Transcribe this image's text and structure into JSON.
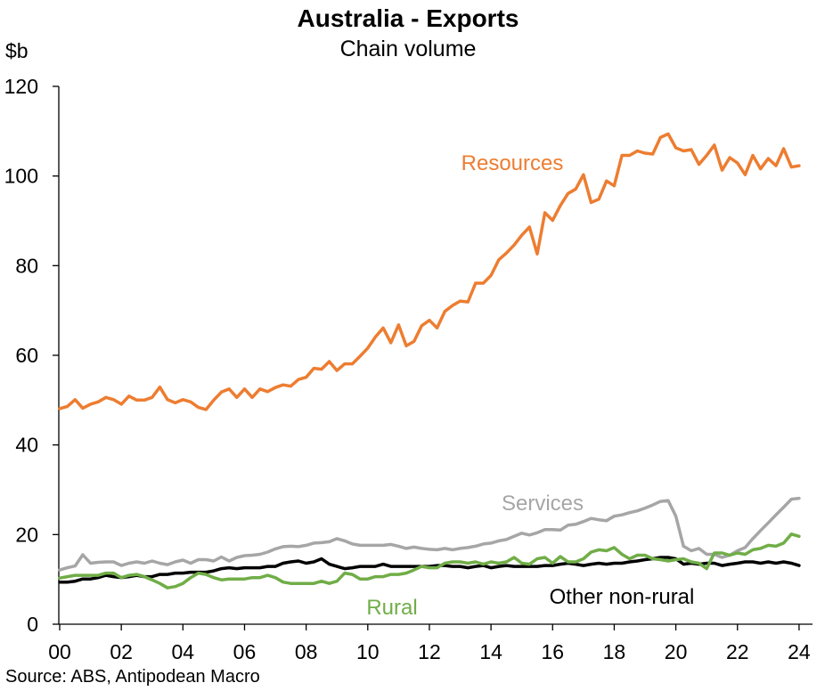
{
  "chart_data": {
    "type": "line",
    "title": "Australia - Exports",
    "subtitle": "Chain volume",
    "y_unit": "$b",
    "source": "Source: ABS, Antipodean Macro",
    "ylim": [
      0,
      120
    ],
    "y_ticks": [
      0,
      20,
      40,
      60,
      80,
      100,
      120
    ],
    "xlim": [
      2000,
      2024.5
    ],
    "x_ticks": [
      2000,
      2002,
      2004,
      2006,
      2008,
      2010,
      2012,
      2014,
      2016,
      2018,
      2020,
      2022,
      2024
    ],
    "x_tick_labels": [
      "00",
      "02",
      "04",
      "06",
      "08",
      "10",
      "12",
      "14",
      "16",
      "18",
      "20",
      "22",
      "24"
    ],
    "grid": false,
    "legend": "none (series labelled directly on chart)",
    "series": [
      {
        "name": "Resources",
        "color": "#ED7D31",
        "x": [
          2000.0,
          2000.25,
          2000.5,
          2000.75,
          2001.0,
          2001.25,
          2001.5,
          2001.75,
          2002.0,
          2002.25,
          2002.5,
          2002.75,
          2003.0,
          2003.25,
          2003.5,
          2003.75,
          2004.0,
          2004.25,
          2004.5,
          2004.75,
          2005.0,
          2005.25,
          2005.5,
          2005.75,
          2006.0,
          2006.25,
          2006.5,
          2006.75,
          2007.0,
          2007.25,
          2007.5,
          2007.75,
          2008.0,
          2008.25,
          2008.5,
          2008.75,
          2009.0,
          2009.25,
          2009.5,
          2009.75,
          2010.0,
          2010.25,
          2010.5,
          2010.75,
          2011.0,
          2011.25,
          2011.5,
          2011.75,
          2012.0,
          2012.25,
          2012.5,
          2012.75,
          2013.0,
          2013.25,
          2013.5,
          2013.75,
          2014.0,
          2014.25,
          2014.5,
          2014.75,
          2015.0,
          2015.25,
          2015.5,
          2015.75,
          2016.0,
          2016.25,
          2016.5,
          2016.75,
          2017.0,
          2017.25,
          2017.5,
          2017.75,
          2018.0,
          2018.25,
          2018.5,
          2018.75,
          2019.0,
          2019.25,
          2019.5,
          2019.75,
          2020.0,
          2020.25,
          2020.5,
          2020.75,
          2021.0,
          2021.25,
          2021.5,
          2021.75,
          2022.0,
          2022.25,
          2022.5,
          2022.75,
          2023.0,
          2023.25,
          2023.5,
          2023.75,
          2024.0
        ],
        "values": [
          48.1,
          48.6,
          50.1,
          48.2,
          49.1,
          49.6,
          50.6,
          50.1,
          49.1,
          50.9,
          50.0,
          50.0,
          50.6,
          52.9,
          50.1,
          49.4,
          50.1,
          49.6,
          48.4,
          47.9,
          50.0,
          51.8,
          52.5,
          50.6,
          52.5,
          50.6,
          52.5,
          51.9,
          52.8,
          53.4,
          53.1,
          54.6,
          55.1,
          57.1,
          56.9,
          58.6,
          56.6,
          58.1,
          58.1,
          59.8,
          61.6,
          64.1,
          66.1,
          62.8,
          66.8,
          62.1,
          63.1,
          66.6,
          67.8,
          66.1,
          69.8,
          71.1,
          72.1,
          71.9,
          76.1,
          76.1,
          77.8,
          81.3,
          82.8,
          84.6,
          86.8,
          88.6,
          82.6,
          91.8,
          90.1,
          93.4,
          96.1,
          97.1,
          100.3,
          94.1,
          94.8,
          98.9,
          97.8,
          104.6,
          104.6,
          105.6,
          105.1,
          104.9,
          108.6,
          109.4,
          106.3,
          105.6,
          105.9,
          102.6,
          104.6,
          106.9,
          101.3,
          104.1,
          102.9,
          100.3,
          104.6,
          101.6,
          103.9,
          102.3,
          106.1,
          102.0,
          102.3
        ]
      },
      {
        "name": "Services",
        "color": "#A6A6A6",
        "x": [
          2000.0,
          2000.25,
          2000.5,
          2000.75,
          2001.0,
          2001.25,
          2001.5,
          2001.75,
          2002.0,
          2002.25,
          2002.5,
          2002.75,
          2003.0,
          2003.25,
          2003.5,
          2003.75,
          2004.0,
          2004.25,
          2004.5,
          2004.75,
          2005.0,
          2005.25,
          2005.5,
          2005.75,
          2006.0,
          2006.25,
          2006.5,
          2006.75,
          2007.0,
          2007.25,
          2007.5,
          2007.75,
          2008.0,
          2008.25,
          2008.5,
          2008.75,
          2009.0,
          2009.25,
          2009.5,
          2009.75,
          2010.0,
          2010.25,
          2010.5,
          2010.75,
          2011.0,
          2011.25,
          2011.5,
          2011.75,
          2012.0,
          2012.25,
          2012.5,
          2012.75,
          2013.0,
          2013.25,
          2013.5,
          2013.75,
          2014.0,
          2014.25,
          2014.5,
          2014.75,
          2015.0,
          2015.25,
          2015.5,
          2015.75,
          2016.0,
          2016.25,
          2016.5,
          2016.75,
          2017.0,
          2017.25,
          2017.5,
          2017.75,
          2018.0,
          2018.25,
          2018.5,
          2018.75,
          2019.0,
          2019.25,
          2019.5,
          2019.75,
          2020.0,
          2020.25,
          2020.5,
          2020.75,
          2021.0,
          2021.25,
          2021.5,
          2021.75,
          2022.0,
          2022.25,
          2022.5,
          2022.75,
          2023.0,
          2023.25,
          2023.5,
          2023.75,
          2024.0
        ],
        "values": [
          12.1,
          12.6,
          13.0,
          15.5,
          13.6,
          13.8,
          13.9,
          13.9,
          13.1,
          13.6,
          13.9,
          13.6,
          14.1,
          13.6,
          13.3,
          13.9,
          14.3,
          13.6,
          14.4,
          14.4,
          14.1,
          15.0,
          14.1,
          14.9,
          15.3,
          15.4,
          15.6,
          16.1,
          16.8,
          17.3,
          17.4,
          17.3,
          17.6,
          18.1,
          18.2,
          18.4,
          19.1,
          18.6,
          17.9,
          17.6,
          17.6,
          17.6,
          17.6,
          17.8,
          17.4,
          16.9,
          17.2,
          16.9,
          16.7,
          16.6,
          16.9,
          16.6,
          16.9,
          17.1,
          17.4,
          17.9,
          18.1,
          18.6,
          18.9,
          19.6,
          20.3,
          19.9,
          20.4,
          21.1,
          21.1,
          21.0,
          22.1,
          22.3,
          22.9,
          23.6,
          23.3,
          23.1,
          24.1,
          24.4,
          24.9,
          25.3,
          25.9,
          26.6,
          27.4,
          27.6,
          24.1,
          17.4,
          16.4,
          16.9,
          15.6,
          15.6,
          14.9,
          15.4,
          16.4,
          17.1,
          19.1,
          20.9,
          22.6,
          24.4,
          26.1,
          27.9,
          28.1
        ]
      },
      {
        "name": "Rural",
        "color": "#70AD47",
        "x": [
          2000.0,
          2000.25,
          2000.5,
          2000.75,
          2001.0,
          2001.25,
          2001.5,
          2001.75,
          2002.0,
          2002.25,
          2002.5,
          2002.75,
          2003.0,
          2003.25,
          2003.5,
          2003.75,
          2004.0,
          2004.25,
          2004.5,
          2004.75,
          2005.0,
          2005.25,
          2005.5,
          2005.75,
          2006.0,
          2006.25,
          2006.5,
          2006.75,
          2007.0,
          2007.25,
          2007.5,
          2007.75,
          2008.0,
          2008.25,
          2008.5,
          2008.75,
          2009.0,
          2009.25,
          2009.5,
          2009.75,
          2010.0,
          2010.25,
          2010.5,
          2010.75,
          2011.0,
          2011.25,
          2011.5,
          2011.75,
          2012.0,
          2012.25,
          2012.5,
          2012.75,
          2013.0,
          2013.25,
          2013.5,
          2013.75,
          2014.0,
          2014.25,
          2014.5,
          2014.75,
          2015.0,
          2015.25,
          2015.5,
          2015.75,
          2016.0,
          2016.25,
          2016.5,
          2016.75,
          2017.0,
          2017.25,
          2017.5,
          2017.75,
          2018.0,
          2018.25,
          2018.5,
          2018.75,
          2019.0,
          2019.25,
          2019.5,
          2019.75,
          2020.0,
          2020.25,
          2020.5,
          2020.75,
          2021.0,
          2021.25,
          2021.5,
          2021.75,
          2022.0,
          2022.25,
          2022.5,
          2022.75,
          2023.0,
          2023.25,
          2023.5,
          2023.75,
          2024.0
        ],
        "values": [
          10.3,
          10.6,
          10.9,
          10.9,
          10.9,
          10.9,
          11.4,
          11.4,
          10.4,
          10.9,
          11.1,
          10.6,
          9.9,
          9.1,
          8.1,
          8.4,
          9.1,
          10.4,
          11.4,
          11.1,
          10.4,
          9.9,
          10.1,
          10.1,
          10.1,
          10.4,
          10.4,
          10.9,
          10.4,
          9.4,
          9.1,
          9.1,
          9.1,
          9.1,
          9.6,
          9.1,
          9.6,
          11.4,
          11.1,
          10.1,
          10.1,
          10.6,
          10.6,
          11.1,
          11.1,
          11.4,
          12.1,
          12.9,
          12.6,
          12.6,
          13.6,
          13.9,
          13.9,
          13.6,
          13.9,
          13.4,
          13.9,
          13.6,
          13.9,
          14.9,
          13.6,
          13.4,
          14.6,
          14.9,
          13.6,
          15.1,
          13.9,
          13.9,
          14.6,
          16.1,
          16.6,
          16.4,
          17.1,
          15.6,
          14.6,
          15.4,
          15.4,
          14.6,
          14.4,
          14.1,
          14.4,
          14.6,
          13.9,
          13.6,
          12.4,
          15.9,
          15.9,
          15.4,
          15.9,
          15.6,
          16.6,
          16.9,
          17.6,
          17.4,
          18.1,
          20.1,
          19.6
        ]
      },
      {
        "name": "Other non-rural",
        "color": "#000000",
        "x": [
          2000.0,
          2000.25,
          2000.5,
          2000.75,
          2001.0,
          2001.25,
          2001.5,
          2001.75,
          2002.0,
          2002.25,
          2002.5,
          2002.75,
          2003.0,
          2003.25,
          2003.5,
          2003.75,
          2004.0,
          2004.25,
          2004.5,
          2004.75,
          2005.0,
          2005.25,
          2005.5,
          2005.75,
          2006.0,
          2006.25,
          2006.5,
          2006.75,
          2007.0,
          2007.25,
          2007.5,
          2007.75,
          2008.0,
          2008.25,
          2008.5,
          2008.75,
          2009.0,
          2009.25,
          2009.5,
          2009.75,
          2010.0,
          2010.25,
          2010.5,
          2010.75,
          2011.0,
          2011.25,
          2011.5,
          2011.75,
          2012.0,
          2012.25,
          2012.5,
          2012.75,
          2013.0,
          2013.25,
          2013.5,
          2013.75,
          2014.0,
          2014.25,
          2014.5,
          2014.75,
          2015.0,
          2015.25,
          2015.5,
          2015.75,
          2016.0,
          2016.25,
          2016.5,
          2016.75,
          2017.0,
          2017.25,
          2017.5,
          2017.75,
          2018.0,
          2018.25,
          2018.5,
          2018.75,
          2019.0,
          2019.25,
          2019.5,
          2019.75,
          2020.0,
          2020.25,
          2020.5,
          2020.75,
          2021.0,
          2021.25,
          2021.5,
          2021.75,
          2022.0,
          2022.25,
          2022.5,
          2022.75,
          2023.0,
          2023.25,
          2023.5,
          2023.75,
          2024.0
        ],
        "values": [
          9.4,
          9.4,
          9.6,
          10.1,
          10.1,
          10.4,
          10.9,
          10.6,
          10.4,
          10.6,
          10.9,
          10.6,
          10.6,
          11.1,
          11.1,
          11.4,
          11.4,
          11.6,
          11.6,
          11.6,
          11.9,
          12.4,
          12.6,
          12.4,
          12.6,
          12.6,
          12.6,
          12.9,
          12.9,
          13.6,
          13.9,
          14.1,
          13.6,
          13.9,
          14.6,
          13.4,
          12.9,
          12.4,
          12.6,
          12.9,
          12.9,
          12.9,
          13.4,
          12.9,
          12.9,
          12.9,
          12.9,
          12.9,
          12.9,
          13.1,
          13.1,
          12.9,
          12.9,
          12.6,
          12.9,
          13.1,
          12.6,
          12.9,
          13.1,
          12.9,
          12.9,
          12.9,
          12.9,
          13.1,
          13.1,
          13.4,
          13.6,
          13.4,
          13.1,
          13.4,
          13.6,
          13.4,
          13.6,
          13.6,
          13.9,
          14.1,
          14.4,
          14.6,
          14.9,
          14.9,
          14.6,
          13.4,
          13.6,
          13.4,
          13.6,
          13.6,
          13.1,
          13.4,
          13.6,
          13.9,
          13.9,
          13.6,
          13.9,
          13.6,
          13.9,
          13.6,
          13.1
        ]
      }
    ]
  }
}
